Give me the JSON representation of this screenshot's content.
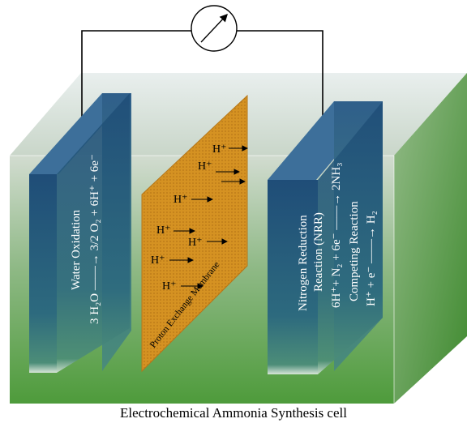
{
  "caption": "Electrochemical Ammonia Synthesis cell",
  "membrane": {
    "label": "Proton Exchange Membrane"
  },
  "anode": {
    "line1": "Water Oxidation",
    "line2": "3 H₂O ——→ 3/2 O₂ + 6H⁺ + 6e⁻"
  },
  "cathode": {
    "line1": "Nitrogen Reduction",
    "line2": "Reaction (NRR)",
    "line3": "6H⁺+ N₂ + 6e⁻ ——→ 2NH₃",
    "line4": "Competing Reaction",
    "line5": "H⁺ + e⁻ ——→ H₂"
  },
  "ions": [
    "H⁺",
    "H⁺",
    "H⁺",
    "H⁺",
    "H⁺",
    "H⁺",
    "H⁺"
  ],
  "colors": {
    "electrolyte_top": "#c9d6c4",
    "electrolyte_bottom": "#4f9a3c",
    "electrode": "#26567e",
    "membrane": "#d4901f",
    "wire": "#000000"
  },
  "icons": {
    "meter": "meter-icon"
  }
}
